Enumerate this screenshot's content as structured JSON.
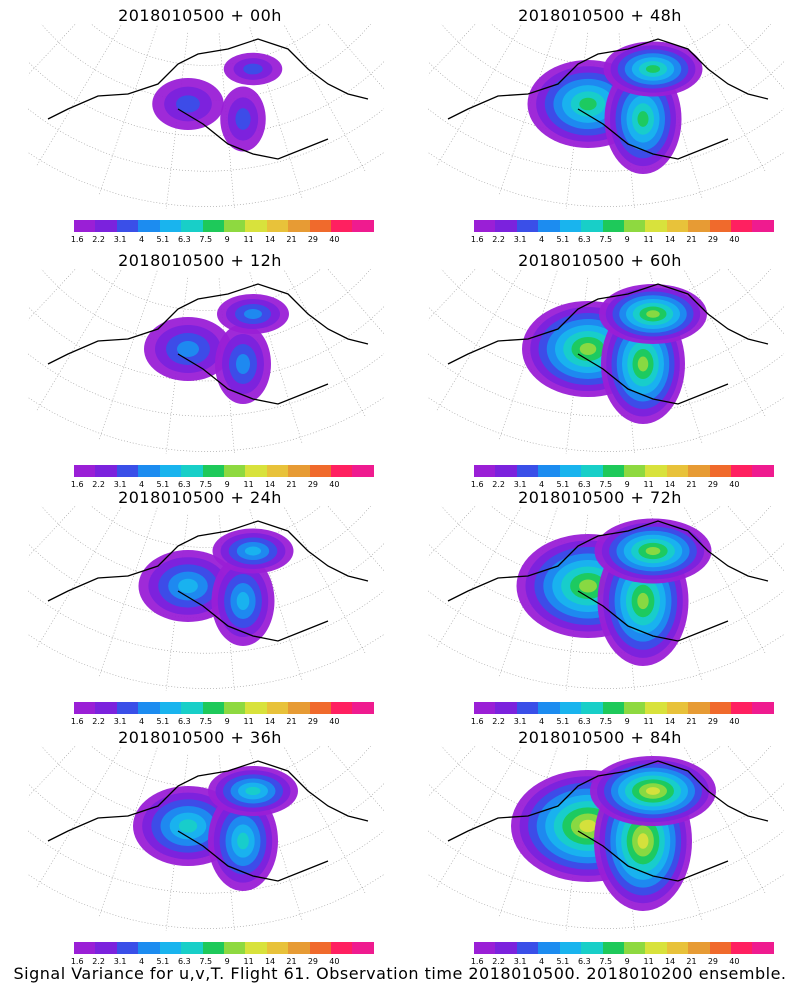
{
  "caption": "Signal Variance for u,v,T. Flight 61. Observation time 2018010500. 2018010200 ensemble.",
  "colorbar": {
    "labels": [
      "1.6",
      "2.2",
      "3.1",
      "4",
      "5.1",
      "6.3",
      "7.5",
      "9",
      "11",
      "14",
      "21",
      "29",
      "40"
    ],
    "colors": [
      "#9a1fd6",
      "#7b22dd",
      "#3a4fe8",
      "#1c8cf0",
      "#19b4ee",
      "#18cfc8",
      "#1ec95a",
      "#8ed940",
      "#d8e23c",
      "#e8c23a",
      "#e79b34",
      "#f06a2c",
      "#ff2060",
      "#ef1b8f"
    ]
  },
  "panels": [
    {
      "title": "2018010500 + 00h",
      "level": 0.15
    },
    {
      "title": "2018010500 + 48h",
      "level": 0.6
    },
    {
      "title": "2018010500 + 12h",
      "level": 0.3
    },
    {
      "title": "2018010500 + 60h",
      "level": 0.7
    },
    {
      "title": "2018010500 + 24h",
      "level": 0.4
    },
    {
      "title": "2018010500 + 72h",
      "level": 0.8
    },
    {
      "title": "2018010500 + 36h",
      "level": 0.5
    },
    {
      "title": "2018010500 + 84h",
      "level": 0.9
    }
  ]
}
